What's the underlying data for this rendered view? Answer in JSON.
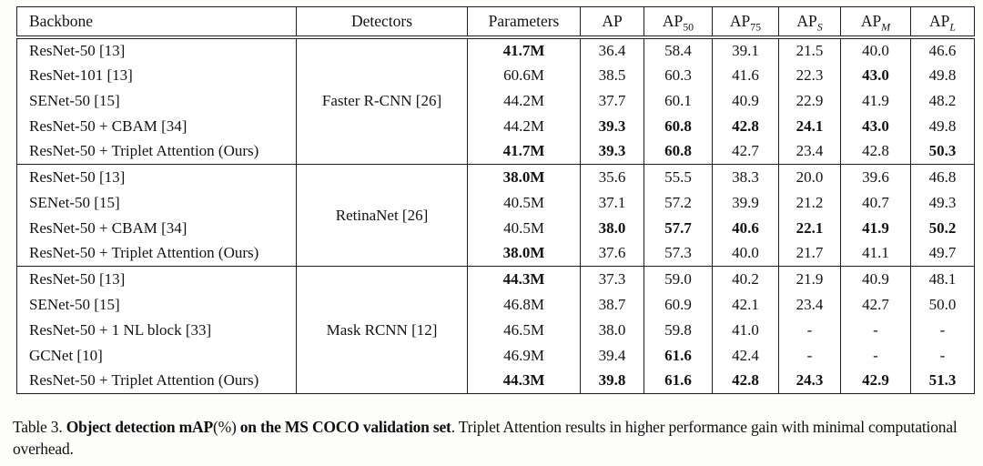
{
  "table": {
    "header": [
      {
        "text": "Backbone",
        "sub": "",
        "align": "left"
      },
      {
        "text": "Detectors",
        "sub": ""
      },
      {
        "text": "Parameters",
        "sub": ""
      },
      {
        "text": "AP",
        "sub": ""
      },
      {
        "text": "AP",
        "sub": "50",
        "subItalic": false
      },
      {
        "text": "AP",
        "sub": "75",
        "subItalic": false
      },
      {
        "text": "AP",
        "sub": "S",
        "subItalic": true
      },
      {
        "text": "AP",
        "sub": "M",
        "subItalic": true
      },
      {
        "text": "AP",
        "sub": "L",
        "subItalic": true
      }
    ],
    "sections": [
      {
        "detector": "Faster R-CNN [26]",
        "rows": [
          {
            "backbone": "ResNet-50 [13]",
            "values": [
              {
                "v": "41.7M",
                "bold": true
              },
              {
                "v": "36.4"
              },
              {
                "v": "58.4"
              },
              {
                "v": "39.1"
              },
              {
                "v": "21.5"
              },
              {
                "v": "40.0"
              },
              {
                "v": "46.6"
              }
            ]
          },
          {
            "backbone": "ResNet-101 [13]",
            "values": [
              {
                "v": "60.6M"
              },
              {
                "v": "38.5"
              },
              {
                "v": "60.3"
              },
              {
                "v": "41.6"
              },
              {
                "v": "22.3"
              },
              {
                "v": "43.0",
                "bold": true
              },
              {
                "v": "49.8"
              }
            ]
          },
          {
            "backbone": "SENet-50 [15]",
            "values": [
              {
                "v": "44.2M"
              },
              {
                "v": "37.7"
              },
              {
                "v": "60.1"
              },
              {
                "v": "40.9"
              },
              {
                "v": "22.9"
              },
              {
                "v": "41.9"
              },
              {
                "v": "48.2"
              }
            ]
          },
          {
            "backbone": "ResNet-50 + CBAM [34]",
            "values": [
              {
                "v": "44.2M"
              },
              {
                "v": "39.3",
                "bold": true
              },
              {
                "v": "60.8",
                "bold": true
              },
              {
                "v": "42.8",
                "bold": true
              },
              {
                "v": "24.1",
                "bold": true
              },
              {
                "v": "43.0",
                "bold": true
              },
              {
                "v": "49.8"
              }
            ]
          },
          {
            "backbone": "ResNet-50 + Triplet Attention (Ours)",
            "values": [
              {
                "v": "41.7M",
                "bold": true
              },
              {
                "v": "39.3",
                "bold": true
              },
              {
                "v": "60.8",
                "bold": true
              },
              {
                "v": "42.7"
              },
              {
                "v": "23.4"
              },
              {
                "v": "42.8"
              },
              {
                "v": "50.3",
                "bold": true
              }
            ]
          }
        ]
      },
      {
        "detector": "RetinaNet [26]",
        "rows": [
          {
            "backbone": "ResNet-50 [13]",
            "values": [
              {
                "v": "38.0M",
                "bold": true
              },
              {
                "v": "35.6"
              },
              {
                "v": "55.5"
              },
              {
                "v": "38.3"
              },
              {
                "v": "20.0"
              },
              {
                "v": "39.6"
              },
              {
                "v": "46.8"
              }
            ]
          },
          {
            "backbone": "SENet-50 [15]",
            "values": [
              {
                "v": "40.5M"
              },
              {
                "v": "37.1"
              },
              {
                "v": "57.2"
              },
              {
                "v": "39.9"
              },
              {
                "v": "21.2"
              },
              {
                "v": "40.7"
              },
              {
                "v": "49.3"
              }
            ]
          },
          {
            "backbone": "ResNet-50 + CBAM [34]",
            "values": [
              {
                "v": "40.5M"
              },
              {
                "v": "38.0",
                "bold": true
              },
              {
                "v": "57.7",
                "bold": true
              },
              {
                "v": "40.6",
                "bold": true
              },
              {
                "v": "22.1",
                "bold": true
              },
              {
                "v": "41.9",
                "bold": true
              },
              {
                "v": "50.2",
                "bold": true
              }
            ]
          },
          {
            "backbone": "ResNet-50 + Triplet Attention (Ours)",
            "values": [
              {
                "v": "38.0M",
                "bold": true
              },
              {
                "v": "37.6"
              },
              {
                "v": "57.3"
              },
              {
                "v": "40.0"
              },
              {
                "v": "21.7"
              },
              {
                "v": "41.1"
              },
              {
                "v": "49.7"
              }
            ]
          }
        ]
      },
      {
        "detector": "Mask RCNN [12]",
        "rows": [
          {
            "backbone": "ResNet-50 [13]",
            "values": [
              {
                "v": "44.3M",
                "bold": true
              },
              {
                "v": "37.3"
              },
              {
                "v": "59.0"
              },
              {
                "v": "40.2"
              },
              {
                "v": "21.9"
              },
              {
                "v": "40.9"
              },
              {
                "v": "48.1"
              }
            ]
          },
          {
            "backbone": "SENet-50 [15]",
            "values": [
              {
                "v": "46.8M"
              },
              {
                "v": "38.7"
              },
              {
                "v": "60.9"
              },
              {
                "v": "42.1"
              },
              {
                "v": "23.4"
              },
              {
                "v": "42.7"
              },
              {
                "v": "50.0"
              }
            ]
          },
          {
            "backbone": "ResNet-50 + 1 NL block [33]",
            "values": [
              {
                "v": "46.5M"
              },
              {
                "v": "38.0"
              },
              {
                "v": "59.8"
              },
              {
                "v": "41.0"
              },
              {
                "v": "-"
              },
              {
                "v": "-"
              },
              {
                "v": "-"
              }
            ]
          },
          {
            "backbone": "GCNet [10]",
            "values": [
              {
                "v": "46.9M"
              },
              {
                "v": "39.4"
              },
              {
                "v": "61.6",
                "bold": true
              },
              {
                "v": "42.4"
              },
              {
                "v": "-"
              },
              {
                "v": "-"
              },
              {
                "v": "-"
              }
            ]
          },
          {
            "backbone": "ResNet-50 + Triplet Attention (Ours)",
            "values": [
              {
                "v": "44.3M",
                "bold": true
              },
              {
                "v": "39.8",
                "bold": true
              },
              {
                "v": "61.6",
                "bold": true
              },
              {
                "v": "42.8",
                "bold": true
              },
              {
                "v": "24.3",
                "bold": true
              },
              {
                "v": "42.9",
                "bold": true
              },
              {
                "v": "51.3",
                "bold": true
              }
            ]
          }
        ]
      }
    ]
  },
  "caption": {
    "parts": [
      {
        "text": "Table 3. ",
        "bold": false
      },
      {
        "text": "Object detection mAP",
        "bold": true
      },
      {
        "text": "(%)",
        "bold": false
      },
      {
        "text": " on the MS COCO validation set",
        "bold": true
      },
      {
        "text": ". Triplet Attention results in higher performance gain with minimal computational overhead.",
        "bold": false
      }
    ]
  },
  "colors": {
    "border": "#1f1f1f",
    "text": "#131313",
    "background": "#ffffff"
  }
}
